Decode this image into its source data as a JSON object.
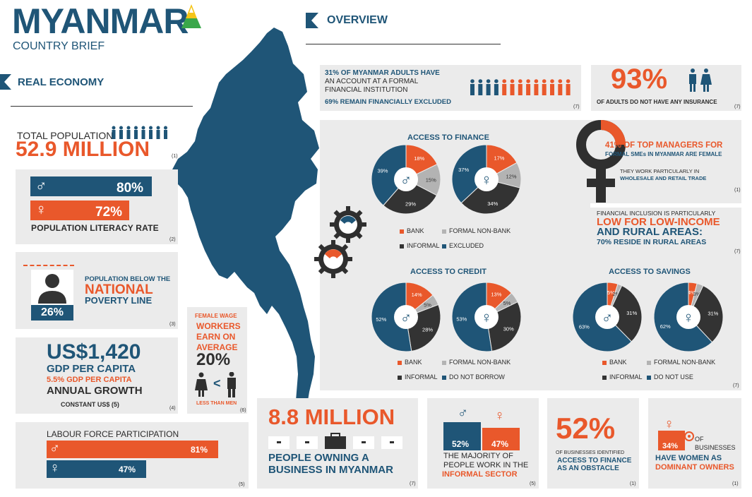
{
  "colors": {
    "navy": "#1f5577",
    "orange": "#e9582b",
    "grey": "#b3b3b3",
    "dark": "#333333",
    "panel": "#ebebeb"
  },
  "header": {
    "title_part1": "MYANM",
    "title_part2": "AR",
    "subtitle": "COUNTRY BRIEF"
  },
  "sections": {
    "overview": "OVERVIEW",
    "real_economy": "REAL ECONOMY"
  },
  "population": {
    "label": "TOTAL POPULATION",
    "value": "52.9 MILLION",
    "ref": "(1)"
  },
  "literacy": {
    "male": "80%",
    "female": "72%",
    "male_frac": 0.8,
    "female_frac": 0.72,
    "label": "POPULATION LITERACY RATE",
    "ref": "(2)"
  },
  "poverty": {
    "value": "26%",
    "line1": "POPULATION BELOW THE",
    "line2": "NATIONAL",
    "line3": "POVERTY LINE",
    "ref": "(3)"
  },
  "gdp": {
    "value": "US$1,420",
    "line1": "GDP PER CAPITA",
    "line2": "5.5% GDP PER CAPITA",
    "line3": "ANNUAL GROWTH",
    "line4": "CONSTANT US$ (5)",
    "ref": "(4)"
  },
  "wage": {
    "l1": "FEMALE WAGE",
    "l2": "WORKERS",
    "l3": "EARN ON",
    "l4": "AVERAGE",
    "value": "20%",
    "compare": "<",
    "foot": "LESS THAN MEN",
    "ref": "(6)"
  },
  "labour": {
    "label": "LABOUR FORCE PARTICIPATION",
    "male": "81%",
    "female": "47%",
    "male_frac": 0.81,
    "female_frac": 0.47,
    "ref": "(5)"
  },
  "accounts": {
    "l1": "31% OF MYANMAR ADULTS HAVE",
    "l2": "AN ACCOUNT AT A FORMAL",
    "l3": "FINANCIAL INSTITUTION",
    "l4": "69% REMAIN FINANCIALLY EXCLUDED",
    "ref": "(7)"
  },
  "insurance": {
    "value": "93%",
    "label": "OF ADULTS DO NOT HAVE ANY INSURANCE",
    "ref": "(7)"
  },
  "managers": {
    "l1": "41% OF TOP MANAGERS FOR",
    "l2": "FORMAL SMEs IN MYANMAR ARE FEMALE",
    "l3": "THEY WORK PARTICULARLY IN",
    "l4": "WHOLESALE AND RETAIL TRADE",
    "ref": "(1)"
  },
  "rural": {
    "l1": "FINANCIAL INCLUSION IS PARTICULARLY",
    "l2": "LOW FOR LOW-INCOME",
    "l3": "AND RURAL AREAS:",
    "l4": "70% RESIDE IN RURAL AREAS",
    "ref": "(7)"
  },
  "business": {
    "value": "8.8 MILLION",
    "l1": "PEOPLE OWNING A",
    "l2": "BUSINESS IN MYANMAR",
    "ref": "(7)"
  },
  "informal": {
    "male": "52%",
    "female": "47%",
    "l1": "THE MAJORITY OF",
    "l2": "PEOPLE WORK IN THE",
    "l3": "INFORMAL SECTOR",
    "ref": "(5)"
  },
  "obstacle": {
    "value": "52%",
    "l1": "OF BUSINESSES IDENTIFIED",
    "l2": "ACCESS TO FINANCE",
    "l3": "AS AN OBSTACLE",
    "ref": "(1)"
  },
  "dominant": {
    "value": "34%",
    "l1": "OF",
    "l2": "BUSINESSES",
    "l3": "HAVE WOMEN AS",
    "l4": "DOMINANT OWNERS",
    "ref": "(1)"
  },
  "chart_data": [
    {
      "type": "pie",
      "title": "ACCESS TO FINANCE",
      "series": [
        {
          "name": "male",
          "values": [
            18,
            15,
            29,
            39
          ]
        },
        {
          "name": "female",
          "values": [
            17,
            12,
            34,
            37
          ]
        }
      ],
      "categories": [
        "BANK",
        "FORMAL NON-BANK",
        "INFORMAL",
        "EXCLUDED"
      ],
      "labels_m": [
        "18%",
        "15%",
        "29%",
        "39%"
      ],
      "labels_f": [
        "17%",
        "12%",
        "34%",
        "37%"
      ]
    },
    {
      "type": "pie",
      "title": "ACCESS TO CREDIT",
      "series": [
        {
          "name": "male",
          "values": [
            14,
            5,
            28,
            52
          ]
        },
        {
          "name": "female",
          "values": [
            13,
            5,
            30,
            53
          ]
        }
      ],
      "categories": [
        "BANK",
        "FORMAL NON-BANK",
        "INFORMAL",
        "DO NOT BORROW"
      ],
      "labels_m": [
        "14%",
        "5%",
        "28%",
        "52%"
      ],
      "labels_f": [
        "13%",
        "5%",
        "30%",
        "53%"
      ]
    },
    {
      "type": "pie",
      "title": "ACCESS TO SAVINGS",
      "series": [
        {
          "name": "male",
          "values": [
            5,
            2,
            31,
            63
          ]
        },
        {
          "name": "female",
          "values": [
            4,
            3,
            31,
            62
          ]
        }
      ],
      "categories": [
        "BANK",
        "FORMAL NON-BANK",
        "INFORMAL",
        "DO NOT USE"
      ],
      "labels_m": [
        "5%",
        "2%",
        "31%",
        "63%"
      ],
      "labels_f": [
        "4%",
        "3%",
        "31%",
        "62%"
      ]
    }
  ],
  "refs": {
    "credit_savings": "(7)"
  }
}
